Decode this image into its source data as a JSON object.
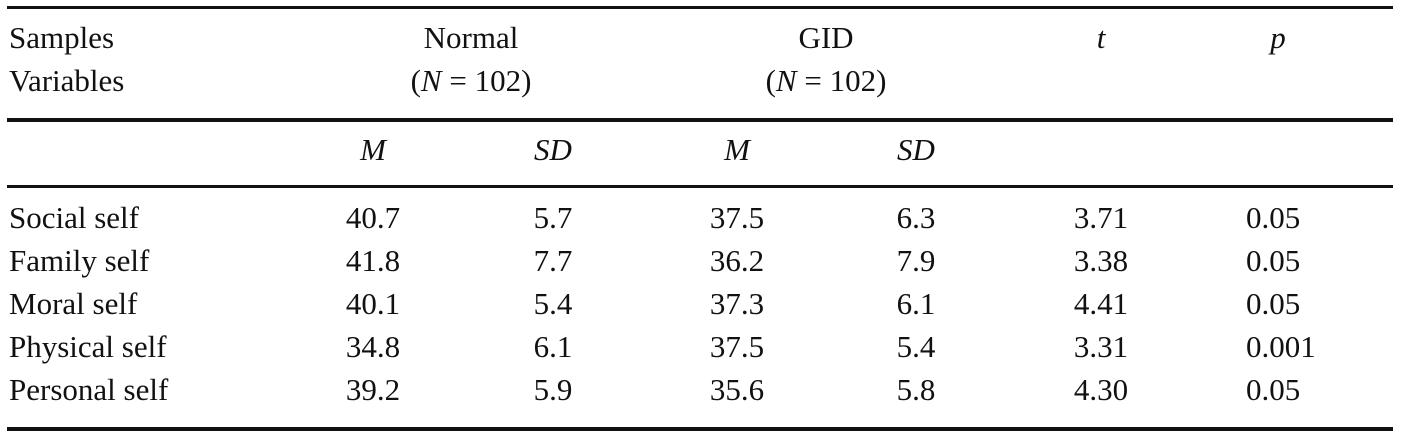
{
  "header": {
    "samples_label": "Samples",
    "variables_label": "Variables",
    "normal_label": "Normal",
    "normal_n_prefix": "(",
    "normal_n_var": "N",
    "normal_n_suffix": " = 102)",
    "gid_label": "GID",
    "gid_n_prefix": "(",
    "gid_n_var": "N",
    "gid_n_suffix": " = 102)",
    "t_label": "t",
    "p_label": "p"
  },
  "subheader": {
    "normal_m": "M",
    "normal_sd": "SD",
    "gid_m": "M",
    "gid_sd": "SD"
  },
  "rows": [
    {
      "variable": "Social self",
      "normal_m": "40.7",
      "normal_sd": "5.7",
      "gid_m": "37.5",
      "gid_sd": "6.3",
      "t": "3.71",
      "p": "0.05"
    },
    {
      "variable": "Family self",
      "normal_m": "41.8",
      "normal_sd": "7.7",
      "gid_m": "36.2",
      "gid_sd": "7.9",
      "t": "3.38",
      "p": "0.05"
    },
    {
      "variable": "Moral self",
      "normal_m": "40.1",
      "normal_sd": "5.4",
      "gid_m": "37.3",
      "gid_sd": "6.1",
      "t": "4.41",
      "p": "0.05"
    },
    {
      "variable": "Physical self",
      "normal_m": "34.8",
      "normal_sd": "6.1",
      "gid_m": "37.5",
      "gid_sd": "5.4",
      "t": "3.31",
      "p": "0.001"
    },
    {
      "variable": "Personal self",
      "normal_m": "39.2",
      "normal_sd": "5.9",
      "gid_m": "35.6",
      "gid_sd": "5.8",
      "t": "4.30",
      "p": "0.05"
    }
  ]
}
